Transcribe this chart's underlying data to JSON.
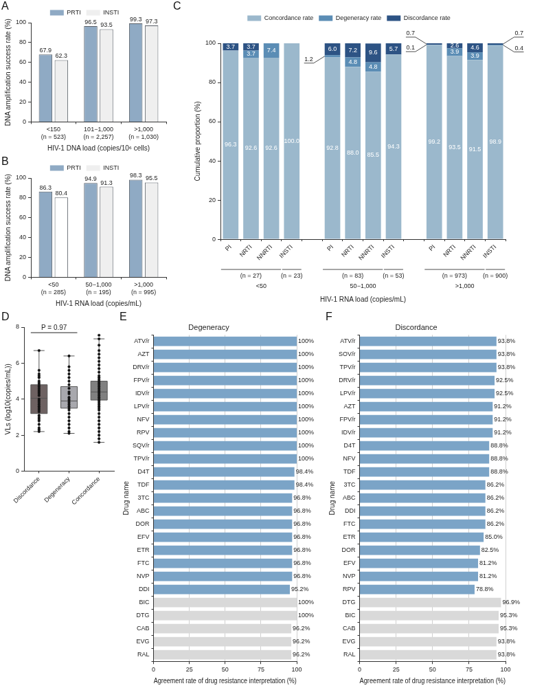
{
  "chart_data": [
    {
      "type": "bar",
      "annotations": [
        "A"
      ],
      "categories": [
        "<150\n(n = 523)",
        "101−1,000\n(n = 2,257)",
        ">1,000\n(n = 1,030)"
      ],
      "series": [
        {
          "name": "PRTI",
          "color": "#8faac4",
          "values": [
            67.9,
            96.5,
            99.3
          ]
        },
        {
          "name": "INSTI",
          "color": "#efefef",
          "values": [
            62.3,
            93.5,
            97.3
          ]
        }
      ],
      "ylim": [
        0,
        100
      ],
      "yticks": [
        0,
        20,
        40,
        60,
        80,
        100
      ],
      "ylabel": "DNA amplification success rate (%)",
      "xlabel": "HIV-1 DNA load (copies/10⁶ cells)",
      "legend": "top",
      "data_labels": true
    },
    {
      "type": "bar",
      "annotations": [
        "B"
      ],
      "categories": [
        "<50\n(n = 285)",
        "50−1,000\n(n = 195)",
        ">1,000\n(n = 995)"
      ],
      "series": [
        {
          "name": "PRTI",
          "color": "#8faac4",
          "values": [
            86.3,
            94.9,
            98.3
          ]
        },
        {
          "name": "INSTI",
          "color": "#efefef",
          "colors": [
            "#ffffff",
            "#efefef",
            "#efefef"
          ],
          "values": [
            80.4,
            91.3,
            95.5
          ]
        }
      ],
      "ylim": [
        0,
        100
      ],
      "yticks": [
        0,
        20,
        40,
        60,
        80,
        100
      ],
      "ylabel": "DNA amplification success rate (%)",
      "xlabel": "HIV-1 RNA load (copies/mL)",
      "legend": "top",
      "data_labels": true
    },
    {
      "type": "bar",
      "stacked": true,
      "annotations": [
        "C",
        "(n = 27)",
        "(n = 23)",
        "(n = 83)",
        "(n = 53)",
        "(n = 973)",
        "(n = 900)",
        "<50",
        "50−1,000",
        ">1,000"
      ],
      "categories": [
        "PI",
        "NRTI",
        "NNRTI",
        "INSTI",
        null,
        "PI",
        "NRTI",
        "NNRTI",
        "INSTI",
        null,
        "PI",
        "NRTI",
        "NNRTI",
        "INSTI"
      ],
      "series": [
        {
          "name": "Concordance rate",
          "color": "#9bb8cc",
          "values": [
            96.3,
            92.6,
            92.6,
            100.0,
            null,
            92.8,
            88.0,
            85.5,
            94.3,
            null,
            99.2,
            93.5,
            91.5,
            98.9
          ],
          "value_labels": [
            "96.3",
            "92.6",
            "92.6",
            "100.0",
            null,
            "92.8",
            "88.0",
            "85.5",
            "94.3",
            null,
            "99.2",
            "93.5",
            "91.5",
            "98.9"
          ]
        },
        {
          "name": "Degeneracy rate",
          "color": "#5b8db5",
          "values": [
            null,
            3.7,
            7.4,
            null,
            null,
            1.2,
            4.8,
            4.8,
            null,
            null,
            0.1,
            3.9,
            3.9,
            0.4
          ],
          "value_labels": [
            null,
            "3.7",
            "7.4",
            null,
            null,
            "1.2",
            "4.8",
            "4.8",
            null,
            null,
            "0.1",
            "3.9",
            "3.9",
            "0.4"
          ]
        },
        {
          "name": "Discordance rate",
          "color": "#2d5384",
          "values": [
            3.7,
            3.7,
            null,
            null,
            null,
            6.0,
            7.2,
            9.6,
            5.7,
            null,
            0.7,
            2.6,
            4.6,
            0.7
          ],
          "value_labels": [
            "3.7",
            "3.7",
            null,
            null,
            null,
            "6.0",
            "7.2",
            "9.6",
            "5.7",
            null,
            "0.7",
            "2.6",
            "4.6",
            "0.7"
          ]
        }
      ],
      "ylim": [
        0,
        100
      ],
      "yticks": [
        0,
        20,
        40,
        60,
        80,
        100
      ],
      "ylabel": "Cumulative proportion (%)",
      "xlabel": "HIV-1 RNA load (copies/mL)",
      "legend": "top"
    },
    {
      "type": "box",
      "annotations": [
        "D",
        "P = 0.97"
      ],
      "categories": [
        "Discordance",
        "Degeneracy",
        "Concordance"
      ],
      "colors": [
        "#6e6262",
        "#a8a8ad",
        "#808080"
      ],
      "boxes": [
        {
          "low": 2.2,
          "q1": 3.2,
          "median": 4.05,
          "q3": 4.8,
          "high": 6.7
        },
        {
          "low": 2.1,
          "q1": 3.5,
          "median": 3.9,
          "q3": 4.7,
          "high": 6.4
        },
        {
          "low": 1.6,
          "q1": 3.95,
          "median": 4.4,
          "q3": 5.0,
          "high": 7.35,
          "outliers": [
            7.55
          ]
        }
      ],
      "series": [
        {
          "type": "scatter",
          "color": "#111111",
          "x": [
            "Discordance",
            "Discordance",
            "Discordance",
            "Discordance",
            "Discordance",
            "Discordance",
            "Discordance",
            "Discordance",
            "Discordance",
            "Discordance",
            "Discordance",
            "Discordance",
            "Discordance",
            "Discordance",
            "Discordance",
            "Discordance",
            "Discordance",
            "Discordance",
            "Discordance",
            "Discordance",
            "Discordance",
            "Discordance",
            "Discordance",
            "Discordance",
            "Discordance",
            "Discordance",
            "Discordance",
            "Discordance",
            "Discordance",
            "Discordance",
            "Degeneracy",
            "Degeneracy",
            "Degeneracy",
            "Degeneracy",
            "Degeneracy",
            "Degeneracy",
            "Degeneracy",
            "Degeneracy",
            "Degeneracy",
            "Degeneracy",
            "Degeneracy",
            "Degeneracy",
            "Degeneracy",
            "Degeneracy",
            "Degeneracy",
            "Degeneracy",
            "Degeneracy",
            "Degeneracy",
            "Degeneracy",
            "Degeneracy",
            "Degeneracy",
            "Degeneracy",
            "Degeneracy",
            "Degeneracy",
            "Degeneracy",
            "Concordance",
            "Concordance",
            "Concordance",
            "Concordance",
            "Concordance",
            "Concordance",
            "Concordance",
            "Concordance",
            "Concordance",
            "Concordance",
            "Concordance",
            "Concordance",
            "Concordance",
            "Concordance",
            "Concordance",
            "Concordance",
            "Concordance",
            "Concordance",
            "Concordance",
            "Concordance",
            "Concordance",
            "Concordance",
            "Concordance",
            "Concordance",
            "Concordance",
            "Concordance",
            "Concordance",
            "Concordance",
            "Concordance",
            "Concordance",
            "Concordance",
            "Concordance",
            "Concordance",
            "Concordance",
            "Concordance",
            "Concordance",
            "Concordance",
            "Concordance"
          ],
          "values": [
            6.7,
            5.6,
            5.4,
            5.3,
            5.2,
            5.0,
            4.9,
            4.8,
            4.7,
            4.6,
            4.5,
            4.4,
            4.3,
            4.2,
            4.0,
            3.9,
            3.8,
            3.7,
            3.6,
            3.5,
            3.4,
            3.3,
            3.1,
            3.0,
            2.9,
            2.8,
            2.6,
            2.4,
            2.3,
            2.2,
            6.4,
            5.8,
            5.6,
            5.4,
            5.2,
            5.0,
            4.8,
            4.6,
            4.4,
            4.3,
            4.1,
            4.0,
            3.9,
            3.8,
            3.7,
            3.6,
            3.5,
            3.4,
            3.2,
            3.0,
            2.8,
            2.6,
            2.4,
            2.2,
            2.1,
            7.35,
            7.0,
            6.7,
            6.5,
            6.3,
            6.1,
            5.9,
            5.7,
            5.5,
            5.3,
            5.2,
            5.1,
            5.0,
            4.9,
            4.8,
            4.7,
            4.6,
            4.5,
            4.4,
            4.3,
            4.2,
            4.1,
            4.0,
            3.9,
            3.8,
            3.7,
            3.6,
            3.5,
            3.4,
            3.2,
            3.0,
            2.8,
            2.6,
            2.4,
            2.2,
            2.0,
            1.8,
            1.6
          ]
        }
      ],
      "ylim": [
        0,
        8
      ],
      "yticks": [
        0,
        2,
        4,
        6,
        8
      ],
      "ylabel": "VLs (log10(copies/mL))",
      "marker": "circle"
    },
    {
      "type": "bar",
      "orientation": "horizontal",
      "title": "Degeneracy",
      "annotations": [
        "E"
      ],
      "categories": [
        "ATV/r",
        "AZT",
        "DRV/r",
        "FPV/r",
        "IDV/r",
        "LPV/r",
        "NFV",
        "RPV",
        "SQV/r",
        "TPV/r",
        "D4T",
        "TDF",
        "3TC",
        "ABC",
        "DOR",
        "EFV",
        "ETR",
        "FTC",
        "NVP",
        "DDI",
        "BIC",
        "DTG",
        "CAB",
        "EVG",
        "RAL"
      ],
      "values": [
        100,
        100,
        100,
        100,
        100,
        100,
        100,
        100,
        100,
        100,
        98.4,
        98.4,
        96.8,
        96.8,
        96.8,
        96.8,
        96.8,
        96.8,
        96.8,
        95.2,
        100,
        100,
        96.2,
        96.2,
        96.2
      ],
      "value_labels": [
        "100%",
        "100%",
        "100%",
        "100%",
        "100%",
        "100%",
        "100%",
        "100%",
        "100%",
        "100%",
        "98.4%",
        "98.4%",
        "96.8%",
        "96.8%",
        "96.8%",
        "96.8%",
        "96.8%",
        "96.8%",
        "96.8%",
        "95.2%",
        "100%",
        "100%",
        "96.2%",
        "96.2%",
        "96.2%"
      ],
      "colors": [
        "#7ba4c7",
        "#7ba4c7",
        "#7ba4c7",
        "#7ba4c7",
        "#7ba4c7",
        "#7ba4c7",
        "#7ba4c7",
        "#7ba4c7",
        "#7ba4c7",
        "#7ba4c7",
        "#7ba4c7",
        "#7ba4c7",
        "#7ba4c7",
        "#7ba4c7",
        "#7ba4c7",
        "#7ba4c7",
        "#7ba4c7",
        "#7ba4c7",
        "#7ba4c7",
        "#7ba4c7",
        "#d9d9d9",
        "#d9d9d9",
        "#d9d9d9",
        "#d9d9d9",
        "#d9d9d9"
      ],
      "xlim": [
        0,
        100
      ],
      "xticks": [
        0,
        25,
        50,
        75,
        100
      ],
      "xlabel": "Agreement rate of drug resistance interpretation (%)",
      "ylabel": "Drug name",
      "grid": "x"
    },
    {
      "type": "bar",
      "orientation": "horizontal",
      "title": "Discordance",
      "annotations": [
        "F"
      ],
      "categories": [
        "ATV/r",
        "SOV/r",
        "TPV/r",
        "DRV/r",
        "LPV/r",
        "AZT",
        "FPV/r",
        "IDV/r",
        "D4T",
        "NFV",
        "TDF",
        "3TC",
        "ABC",
        "DDI",
        "FTC",
        "ETR",
        "DOR",
        "EFV",
        "NVP",
        "RPV",
        "DTG",
        "BIC",
        "CAB",
        "EVG",
        "RAL"
      ],
      "values": [
        93.8,
        93.8,
        93.8,
        92.5,
        92.5,
        91.2,
        91.2,
        91.2,
        88.8,
        88.8,
        88.8,
        86.2,
        86.2,
        86.2,
        86.2,
        85.0,
        82.5,
        81.2,
        81.2,
        78.8,
        96.9,
        95.3,
        95.3,
        93.8,
        93.8
      ],
      "value_labels": [
        "93.8%",
        "93.8%",
        "93.8%",
        "92.5%",
        "92.5%",
        "91.2%",
        "91.2%",
        "91.2%",
        "88.8%",
        "88.8%",
        "88.8%",
        "86.2%",
        "86.2%",
        "86.2%",
        "86.2%",
        "85.0%",
        "82.5%",
        "81.2%",
        "81.2%",
        "78.8%",
        "96.9%",
        "95.3%",
        "95.3%",
        "93.8%",
        "93.8%"
      ],
      "colors": [
        "#7ba4c7",
        "#7ba4c7",
        "#7ba4c7",
        "#7ba4c7",
        "#7ba4c7",
        "#7ba4c7",
        "#7ba4c7",
        "#7ba4c7",
        "#7ba4c7",
        "#7ba4c7",
        "#7ba4c7",
        "#7ba4c7",
        "#7ba4c7",
        "#7ba4c7",
        "#7ba4c7",
        "#7ba4c7",
        "#7ba4c7",
        "#7ba4c7",
        "#7ba4c7",
        "#7ba4c7",
        "#d9d9d9",
        "#d9d9d9",
        "#d9d9d9",
        "#d9d9d9",
        "#d9d9d9"
      ],
      "xlim": [
        0,
        100
      ],
      "xticks": [
        0,
        25,
        50,
        75,
        100
      ],
      "xlabel": "Agreement rate of drug resistance interpretation (%)",
      "ylabel": "Drug name",
      "grid": "x"
    }
  ]
}
